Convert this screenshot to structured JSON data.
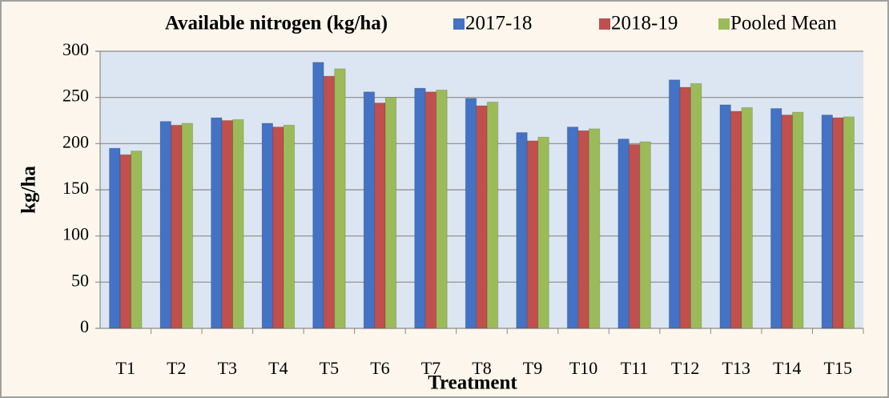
{
  "chart_data": {
    "type": "bar",
    "title": "Available nitrogen (kg/ha)",
    "x_label": "Treatment",
    "y_label": "kg/ha",
    "categories": [
      "T1",
      "T2",
      "T3",
      "T4",
      "T5",
      "T6",
      "T7",
      "T8",
      "T9",
      "T10",
      "T11",
      "T12",
      "T13",
      "T14",
      "T15"
    ],
    "series": [
      {
        "name": "2017-18",
        "color": "#4472c4",
        "values": [
          195,
          224,
          228,
          222,
          288,
          256,
          260,
          249,
          212,
          218,
          205,
          269,
          242,
          238,
          231
        ]
      },
      {
        "name": "2018-19",
        "color": "#c0504d",
        "values": [
          188,
          220,
          225,
          218,
          273,
          244,
          256,
          241,
          203,
          214,
          199,
          261,
          235,
          231,
          228
        ]
      },
      {
        "name": "Pooled Mean",
        "color": "#9bbb59",
        "values": [
          192,
          222,
          226,
          220,
          281,
          250,
          258,
          245,
          207,
          216,
          202,
          265,
          239,
          234,
          229
        ]
      }
    ],
    "ylim": [
      0,
      300
    ],
    "yticks": [
      0,
      50,
      100,
      150,
      200,
      250,
      300
    ],
    "grid": true,
    "legend": "top"
  }
}
